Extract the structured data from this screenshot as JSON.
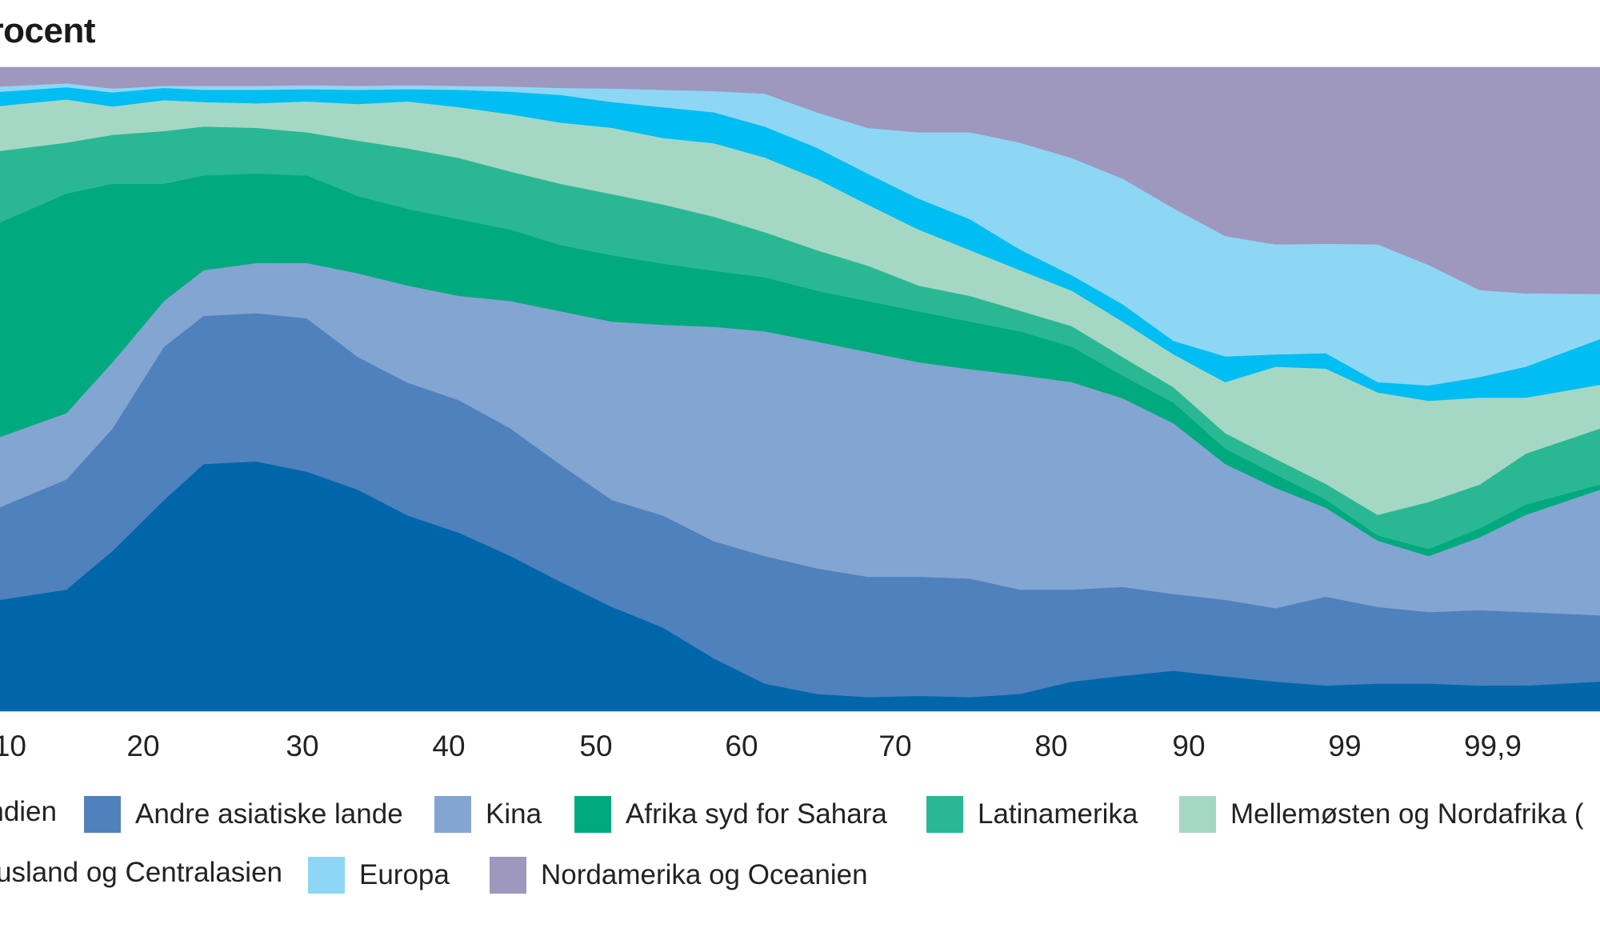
{
  "chart_data": {
    "type": "area",
    "stacked": true,
    "title": "Procent",
    "xlabel": "",
    "ylabel": "",
    "ylim": [
      0,
      100
    ],
    "grid": false,
    "legend_placement": "bottom",
    "x_ticks": [
      "10",
      "20",
      "30",
      "40",
      "50",
      "60",
      "70",
      "80",
      "90",
      "99",
      "99,9"
    ],
    "x": [
      8.8,
      14.0,
      17.6,
      21.3,
      23.8,
      27.1,
      30.3,
      33.8,
      37.2,
      40.7,
      44.2,
      47.6,
      51.1,
      54.6,
      58.1,
      61.5,
      64.9,
      68.2,
      71.5,
      74.8,
      78.0,
      81.5,
      85.2,
      88.9,
      92.1,
      95.0,
      97.9,
      99.2,
      99.51,
      99.82,
      99.92,
      99.965
    ],
    "series": [
      {
        "name": "Indien",
        "color": "#0066AA",
        "values": [
          17.3,
          18.9,
          24.9,
          32.8,
          38.4,
          38.8,
          37.2,
          34.4,
          30.4,
          27.7,
          24.1,
          20.1,
          16.2,
          13.0,
          8.2,
          4.3,
          2.7,
          2.2,
          2.4,
          2.2,
          2.7,
          4.6,
          5.5,
          6.3,
          5.4,
          4.6,
          4.0,
          4.3,
          4.3,
          4.0,
          4.0,
          4.6
        ]
      },
      {
        "name": "Andre asiatiske lande",
        "color": "#4F81BD",
        "values": [
          14.4,
          17.1,
          19.0,
          23.8,
          23.0,
          23.0,
          23.8,
          20.6,
          20.6,
          20.6,
          19.8,
          18.2,
          16.6,
          17.4,
          18.2,
          19.8,
          19.5,
          18.7,
          18.5,
          18.4,
          16.2,
          14.3,
          13.8,
          11.9,
          11.9,
          11.4,
          13.8,
          11.9,
          11.1,
          11.7,
          11.4,
          10.3
        ]
      },
      {
        "name": "Kina",
        "color": "#83A5D2",
        "values": [
          10.9,
          10.3,
          10.3,
          7.1,
          7.1,
          7.8,
          8.6,
          13.0,
          15.1,
          16.2,
          19.8,
          23.8,
          27.7,
          29.6,
          33.3,
          34.9,
          35.2,
          34.9,
          33.3,
          32.5,
          33.3,
          32.2,
          29.3,
          26.5,
          21.1,
          18.7,
          13.8,
          10.3,
          8.7,
          11.3,
          15.1,
          19.5
        ]
      },
      {
        "name": "Afrika syd for Sahara",
        "color": "#00AA7E",
        "values": [
          33.3,
          34.1,
          27.7,
          18.2,
          14.7,
          13.9,
          13.6,
          12.0,
          11.9,
          11.9,
          11.1,
          10.3,
          10.3,
          9.5,
          8.7,
          8.4,
          7.9,
          7.9,
          7.9,
          7.4,
          6.8,
          5.5,
          3.5,
          3.2,
          2.4,
          2.1,
          1.3,
          0.8,
          1.1,
          1.4,
          1.6,
          0.8
        ]
      },
      {
        "name": "Latinamerika",
        "color": "#2AB894",
        "values": [
          11.1,
          7.9,
          7.6,
          8.2,
          7.6,
          7.1,
          6.7,
          8.6,
          9.4,
          9.5,
          9.0,
          9.5,
          9.5,
          9.2,
          8.4,
          7.0,
          6.3,
          5.5,
          4.0,
          4.0,
          3.2,
          3.2,
          2.9,
          2.4,
          2.4,
          2.4,
          2.4,
          3.2,
          7.3,
          6.8,
          7.9,
          8.7
        ]
      },
      {
        "name": "Mellemøsten og Nordafrika (",
        "color": "#A5D8C4",
        "values": [
          7.0,
          6.7,
          4.4,
          4.8,
          3.8,
          3.8,
          4.8,
          5.7,
          7.3,
          7.9,
          8.9,
          9.5,
          10.3,
          10.3,
          11.4,
          11.6,
          11.1,
          9.5,
          8.7,
          7.1,
          6.3,
          5.5,
          5.5,
          5.1,
          7.9,
          14.3,
          17.9,
          19.0,
          15.7,
          13.5,
          8.7,
          6.8
        ]
      },
      {
        "name": "Rusland og Centralasien",
        "color": "#00BDF2",
        "values": [
          2.2,
          1.9,
          2.2,
          1.9,
          1.9,
          2.1,
          1.9,
          2.2,
          1.9,
          2.7,
          3.5,
          4.3,
          4.0,
          4.8,
          4.8,
          4.8,
          4.8,
          4.8,
          4.8,
          4.8,
          3.2,
          2.4,
          2.7,
          2.1,
          4.0,
          1.9,
          2.4,
          1.6,
          2.4,
          3.2,
          4.8,
          7.1
        ]
      },
      {
        "name": "Europa",
        "color": "#8DD7F5",
        "values": [
          0.8,
          0.6,
          0.6,
          0.3,
          0.6,
          0.6,
          0.6,
          0.6,
          0.6,
          0.6,
          0.8,
          1.1,
          2.1,
          2.7,
          3.3,
          5.1,
          5.5,
          7.1,
          10.3,
          13.5,
          16.6,
          18.2,
          19.5,
          20.6,
          18.7,
          17.1,
          17.0,
          21.4,
          18.7,
          13.5,
          11.4,
          7.0
        ]
      },
      {
        "name": "Nordamerika og Oceanien",
        "color": "#9E97BE",
        "values": [
          3.0,
          2.5,
          3.2,
          2.9,
          2.9,
          2.9,
          2.9,
          2.9,
          2.9,
          2.9,
          3.0,
          3.2,
          3.3,
          3.5,
          3.6,
          4.3,
          7.0,
          9.4,
          10.1,
          10.1,
          11.7,
          14.1,
          17.3,
          22.0,
          26.3,
          27.6,
          27.6,
          27.6,
          30.7,
          34.7,
          35.2,
          35.2
        ]
      }
    ]
  }
}
